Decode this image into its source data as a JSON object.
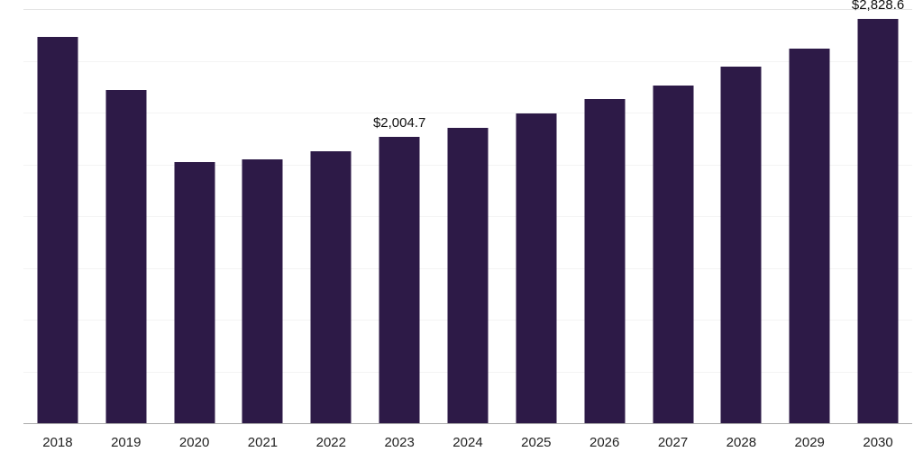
{
  "chart_data": {
    "type": "bar",
    "title": "",
    "xlabel": "",
    "ylabel": "",
    "categories": [
      "2018",
      "2019",
      "2020",
      "2021",
      "2022",
      "2023",
      "2024",
      "2025",
      "2026",
      "2027",
      "2028",
      "2029",
      "2030"
    ],
    "values": [
      2705,
      2330,
      1830,
      1845,
      1905,
      2004.7,
      2070,
      2170,
      2270,
      2365,
      2495,
      2625,
      2828.6
    ],
    "annotations": [
      {
        "category": "2023",
        "text": "$2,004.7"
      },
      {
        "category": "2030",
        "text": "$2,828.6"
      }
    ],
    "unit_prefix": "$",
    "ylim": [
      0,
      2900
    ],
    "grid": true,
    "grid_divisions": 8,
    "legend": "none",
    "bar_color": "#2d1a47",
    "axis_line_color": "#ababab",
    "gridline_color": "#f4f4f4",
    "label_color": "#1f1f1f"
  }
}
